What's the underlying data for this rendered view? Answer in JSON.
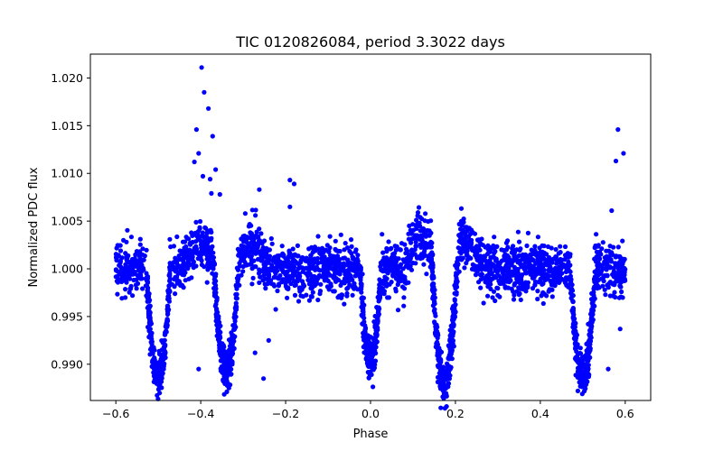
{
  "chart_data": {
    "type": "scatter",
    "title": "TIC 0120826084, period 3.3022 days",
    "xlabel": "Phase",
    "ylabel": "Normalized PDC flux",
    "xlim": [
      -0.66,
      0.66
    ],
    "ylim": [
      0.9862,
      1.0225
    ],
    "grid": false,
    "legend": "none",
    "marker_color": "#0000ff",
    "xticks": [
      -0.6,
      -0.4,
      -0.2,
      0.0,
      0.2,
      0.4,
      0.6
    ],
    "xtick_labels": [
      "−0.6",
      "−0.4",
      "−0.2",
      "0.0",
      "0.2",
      "0.4",
      "0.6"
    ],
    "yticks": [
      0.99,
      0.995,
      1.0,
      1.005,
      1.01,
      1.015,
      1.02
    ],
    "ytick_labels": [
      "0.990",
      "0.995",
      "1.000",
      "1.005",
      "1.010",
      "1.015",
      "1.020"
    ],
    "baseline": {
      "phase_range": [
        -0.6,
        0.6
      ],
      "flux_center": 1.0,
      "flux_scatter": 0.0024
    },
    "eclipses": [
      {
        "name": "primary",
        "phase_center": -0.5,
        "min_flux": 0.9885,
        "half_width": 0.028
      },
      {
        "name": "primary",
        "phase_center": -0.34,
        "min_flux": 0.9895,
        "half_width": 0.03
      },
      {
        "name": "secondary",
        "phase_center": 0.0,
        "min_flux": 0.9905,
        "half_width": 0.025
      },
      {
        "name": "primary",
        "phase_center": 0.175,
        "min_flux": 0.988,
        "half_width": 0.033
      },
      {
        "name": "primary",
        "phase_center": 0.5,
        "min_flux": 0.989,
        "half_width": 0.03
      }
    ],
    "bumps": [
      {
        "phase_center": -0.4,
        "max_flux": 1.0045,
        "half_width": 0.04
      },
      {
        "phase_center": -0.28,
        "max_flux": 1.005,
        "half_width": 0.04
      },
      {
        "phase_center": 0.12,
        "max_flux": 1.006,
        "half_width": 0.04
      },
      {
        "phase_center": 0.22,
        "max_flux": 1.0055,
        "half_width": 0.04
      }
    ],
    "outliers": [
      {
        "x": -0.398,
        "y": 1.0211
      },
      {
        "x": -0.392,
        "y": 1.0185
      },
      {
        "x": -0.382,
        "y": 1.0168
      },
      {
        "x": -0.41,
        "y": 1.0146
      },
      {
        "x": -0.372,
        "y": 1.0139
      },
      {
        "x": -0.405,
        "y": 1.0121
      },
      {
        "x": -0.415,
        "y": 1.0112
      },
      {
        "x": -0.365,
        "y": 1.0104
      },
      {
        "x": -0.395,
        "y": 1.0097
      },
      {
        "x": -0.378,
        "y": 1.0094
      },
      {
        "x": -0.375,
        "y": 1.0079
      },
      {
        "x": -0.355,
        "y": 1.0078
      },
      {
        "x": -0.262,
        "y": 1.0083
      },
      {
        "x": -0.19,
        "y": 1.0093
      },
      {
        "x": -0.18,
        "y": 1.0089
      },
      {
        "x": -0.19,
        "y": 1.0065
      },
      {
        "x": -0.295,
        "y": 1.0058
      },
      {
        "x": 0.583,
        "y": 1.0146
      },
      {
        "x": 0.596,
        "y": 1.0121
      },
      {
        "x": 0.578,
        "y": 1.0113
      },
      {
        "x": 0.568,
        "y": 1.0061
      },
      {
        "x": -0.252,
        "y": 0.9885
      },
      {
        "x": -0.405,
        "y": 0.9895
      },
      {
        "x": -0.272,
        "y": 0.9912
      },
      {
        "x": 0.56,
        "y": 0.9895
      },
      {
        "x": -0.24,
        "y": 0.9925
      },
      {
        "x": 0.588,
        "y": 0.9937
      }
    ]
  }
}
